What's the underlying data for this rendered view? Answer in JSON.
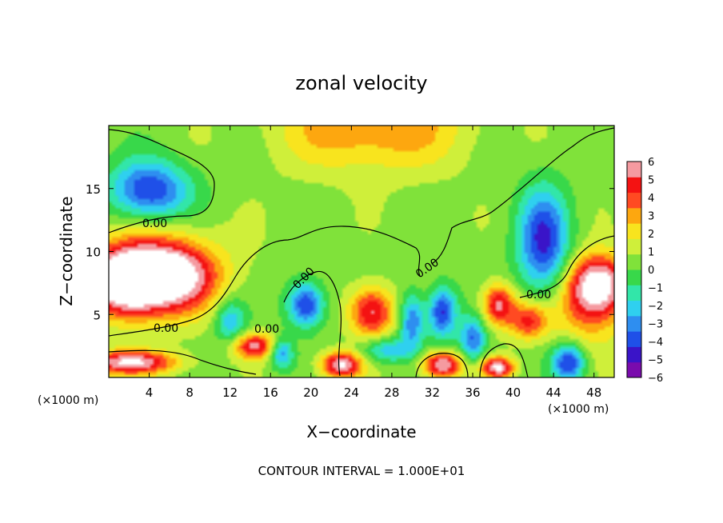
{
  "chart_data": {
    "type": "heatmap",
    "title": "zonal velocity",
    "xlabel": "X−coordinate",
    "ylabel": "Z−coordinate",
    "x_unit_left": "(×1000 m)",
    "x_unit_right": "(×1000 m)",
    "footer": "CONTOUR INTERVAL = 1.000E+01",
    "xlim": [
      0,
      50
    ],
    "ylim": [
      0,
      20
    ],
    "x_ticks": [
      4,
      8,
      12,
      16,
      20,
      24,
      28,
      32,
      36,
      40,
      44,
      48
    ],
    "y_ticks": [
      5,
      10,
      15
    ],
    "colorbar": {
      "min": -6,
      "max": 6,
      "tick_labels": [
        "6",
        "5",
        "4",
        "3",
        "2",
        "1",
        "0",
        "−1",
        "−2",
        "−3",
        "−4",
        "−5",
        "−6"
      ],
      "colors": [
        "#7a0bad",
        "#3a14c8",
        "#1f50e8",
        "#2e8ef0",
        "#2fd0ef",
        "#32e6a9",
        "#38d84a",
        "#80e23a",
        "#cfef3a",
        "#f8e41e",
        "#fda70f",
        "#ff4a22",
        "#f41212",
        "#f59aa0"
      ]
    },
    "contour_level_label": "0.00",
    "contour_labels": [
      "0.00",
      "0.00",
      "0.00",
      "0.00",
      "0.00",
      "0.00"
    ],
    "field": [
      {
        "x": 1.5,
        "z": 7.5,
        "v": 6,
        "sx": 3.5,
        "sz": 2.4
      },
      {
        "x": 5.5,
        "z": 8.0,
        "v": 6,
        "sx": 4.5,
        "sz": 2.4
      },
      {
        "x": 4.5,
        "z": 8.5,
        "v": 3,
        "sx": 6.5,
        "sz": 3.8
      },
      {
        "x": 4.0,
        "z": 14.8,
        "v": -5,
        "sx": 4.0,
        "sz": 2.4
      },
      {
        "x": 43.0,
        "z": 10.8,
        "v": -5,
        "sx": 2.5,
        "sz": 4.2
      },
      {
        "x": 48.5,
        "z": 7.5,
        "v": 6,
        "sx": 2.8,
        "sz": 2.2
      },
      {
        "x": 47.5,
        "z": 5.5,
        "v": 3,
        "sx": 3.5,
        "sz": 3.0
      },
      {
        "x": 26.0,
        "z": 20.0,
        "v": 3,
        "sx": 9.0,
        "sz": 3.6
      },
      {
        "x": 2.0,
        "z": 1.2,
        "v": 6,
        "sx": 4.5,
        "sz": 0.9
      },
      {
        "x": 14.5,
        "z": 2.5,
        "v": 5,
        "sx": 2.2,
        "sz": 1.0
      },
      {
        "x": 19.5,
        "z": 5.8,
        "v": -5,
        "sx": 1.8,
        "sz": 1.8
      },
      {
        "x": 26.0,
        "z": 5.2,
        "v": 5,
        "sx": 2.2,
        "sz": 2.0
      },
      {
        "x": 33.0,
        "z": 5.2,
        "v": -5,
        "sx": 1.4,
        "sz": 2.0
      },
      {
        "x": 38.5,
        "z": 5.8,
        "v": 5,
        "sx": 1.6,
        "sz": 1.6
      },
      {
        "x": 41.5,
        "z": 4.5,
        "v": 4,
        "sx": 2.0,
        "sz": 1.5
      },
      {
        "x": 30.0,
        "z": 4.5,
        "v": -4,
        "sx": 1.2,
        "sz": 2.2
      },
      {
        "x": 23.0,
        "z": 1.0,
        "v": 6,
        "sx": 2.0,
        "sz": 1.0
      },
      {
        "x": 33.0,
        "z": 1.0,
        "v": 6,
        "sx": 2.0,
        "sz": 1.0
      },
      {
        "x": 38.5,
        "z": 0.8,
        "v": 6,
        "sx": 1.6,
        "sz": 0.8
      },
      {
        "x": 45.5,
        "z": 1.2,
        "v": -5,
        "sx": 1.6,
        "sz": 1.5
      },
      {
        "x": 12.0,
        "z": 4.5,
        "v": -3,
        "sx": 1.5,
        "sz": 1.8
      },
      {
        "x": 36.0,
        "z": 3.0,
        "v": -4,
        "sx": 1.3,
        "sz": 1.8
      },
      {
        "x": 17.0,
        "z": 2.0,
        "v": -4,
        "sx": 1.2,
        "sz": 1.2
      },
      {
        "x": 27.5,
        "z": 2.2,
        "v": -3,
        "sx": 2.5,
        "sz": 1.0
      }
    ]
  }
}
